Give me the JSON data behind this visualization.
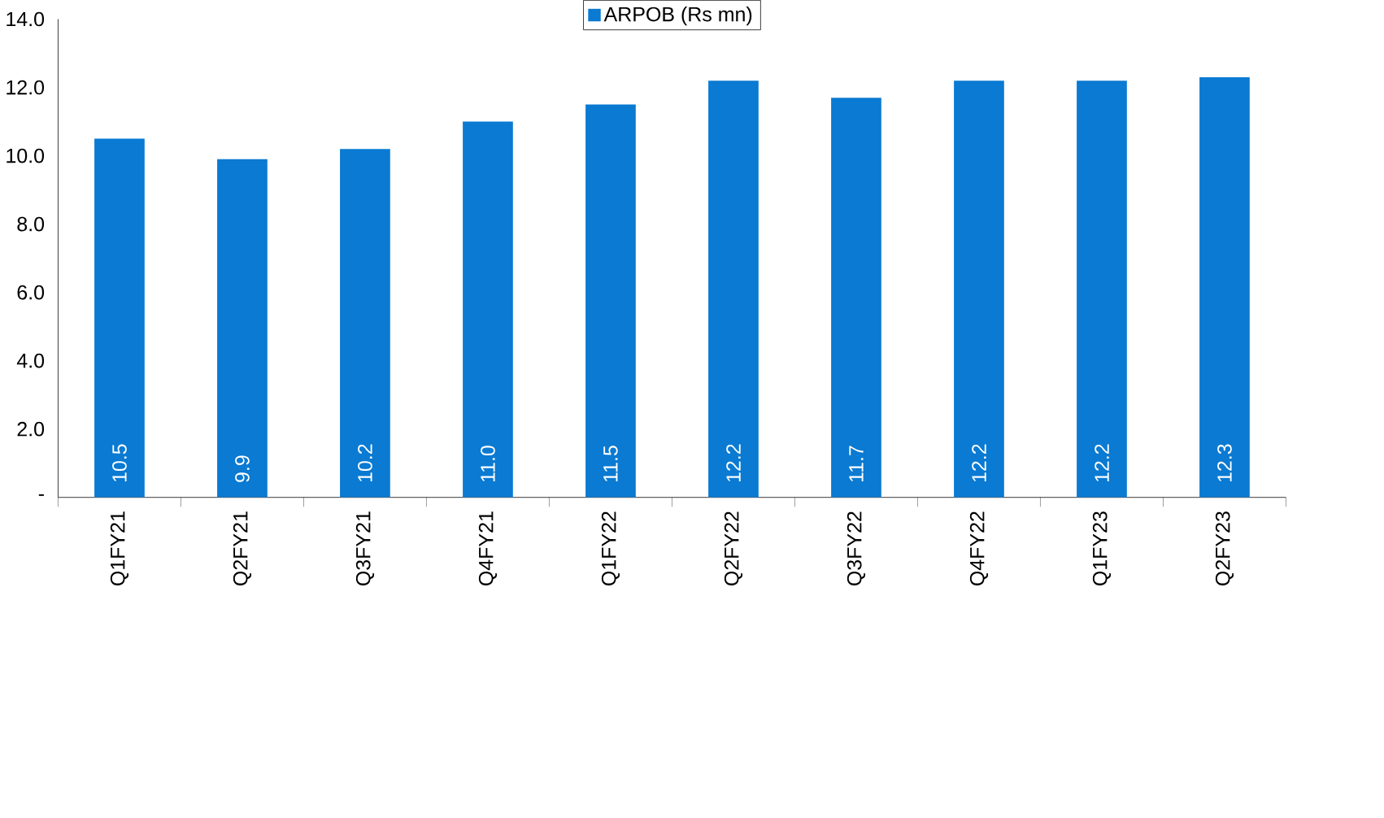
{
  "chart_data": {
    "type": "bar",
    "categories": [
      "Q1FY21",
      "Q2FY21",
      "Q3FY21",
      "Q4FY21",
      "Q1FY22",
      "Q2FY22",
      "Q3FY22",
      "Q4FY22",
      "Q1FY23",
      "Q2FY23"
    ],
    "series": [
      {
        "name": "ARPOB (Rs mn)",
        "color": "#0a7ad2",
        "values": [
          10.5,
          9.9,
          10.2,
          11.0,
          11.5,
          12.2,
          11.7,
          12.2,
          12.2,
          12.3
        ],
        "value_labels": [
          "10.5",
          "9.9",
          "10.2",
          "11.0",
          "11.5",
          "12.2",
          "11.7",
          "12.2",
          "12.2",
          "12.3"
        ]
      }
    ],
    "ylim": [
      0,
      14
    ],
    "yticks": [
      {
        "value": 0,
        "label": "-"
      },
      {
        "value": 2,
        "label": "2.0"
      },
      {
        "value": 4,
        "label": "4.0"
      },
      {
        "value": 6,
        "label": "6.0"
      },
      {
        "value": 8,
        "label": "8.0"
      },
      {
        "value": 10,
        "label": "10.0"
      },
      {
        "value": 12,
        "label": "12.0"
      },
      {
        "value": 14,
        "label": "14.0"
      }
    ],
    "grid": false,
    "legend": "top"
  }
}
